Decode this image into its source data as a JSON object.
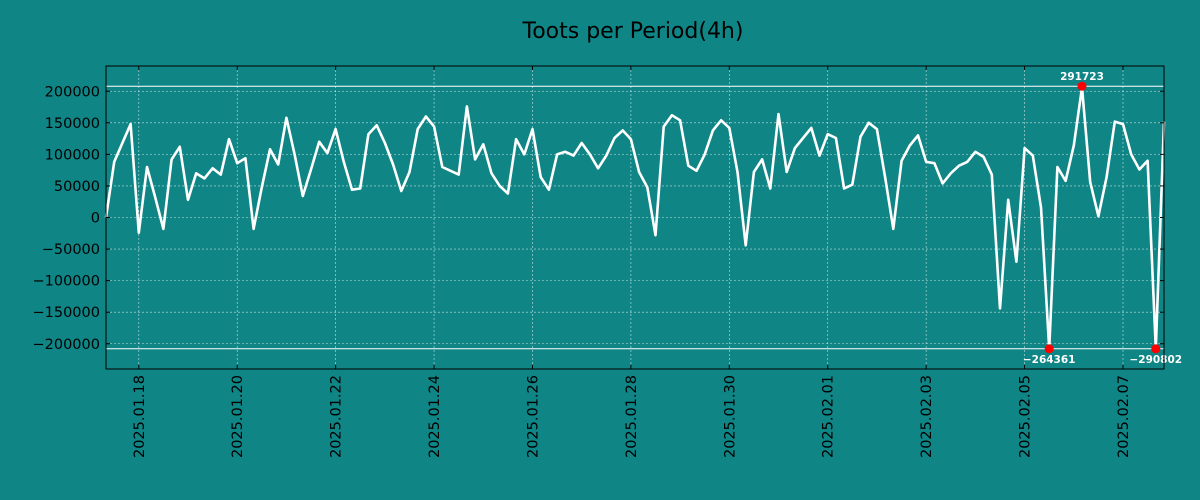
{
  "colors": {
    "background": "#108586",
    "line": "#ffffff",
    "marker": "#ff0000",
    "grid": "#ffffff",
    "text": "#000000"
  },
  "chart_data": {
    "type": "line",
    "title": "Toots per Period(4h)",
    "xlabel": "",
    "ylabel": "",
    "x_start": "2025-01-17 08:00",
    "period_hours": 4,
    "grid": true,
    "legend": "none",
    "ylim": [
      -240000,
      240000
    ],
    "xlim": [
      "2025-01-17 08:00",
      "2025-02-07 20:00"
    ],
    "yticks": [
      200000,
      150000,
      100000,
      50000,
      0,
      -50000,
      -100000,
      -150000,
      -200000
    ],
    "ytick_labels": [
      "200000",
      "150000",
      "100000",
      "50000",
      "0",
      "−50000",
      "−100000",
      "−150000",
      "−200000"
    ],
    "xticks": [
      "2025-01-18",
      "2025-01-20",
      "2025-01-22",
      "2025-01-24",
      "2025-01-26",
      "2025-01-28",
      "2025-01-30",
      "2025-02-01",
      "2025-02-03",
      "2025-02-05",
      "2025-02-07"
    ],
    "xtick_labels": [
      "2025.01.18",
      "2025.01.20",
      "2025.01.22",
      "2025.01.24",
      "2025.01.26",
      "2025.01.28",
      "2025.01.30",
      "2025.02.01",
      "2025.02.03",
      "2025.02.05",
      "2025.02.07"
    ],
    "series": [
      {
        "values": [
          0,
          88000,
          118000,
          148000,
          -24000,
          80000,
          32000,
          -18000,
          92000,
          112000,
          28000,
          70000,
          62000,
          78000,
          68000,
          124000,
          86000,
          94000,
          -18000,
          48000,
          108000,
          84000,
          158000,
          100000,
          34000,
          76000,
          120000,
          102000,
          140000,
          88000,
          44000,
          46000,
          132000,
          146000,
          118000,
          84000,
          42000,
          72000,
          140000,
          160000,
          144000,
          80000,
          74000,
          68000,
          176000,
          92000,
          116000,
          70000,
          50000,
          38000,
          124000,
          100000,
          140000,
          64000,
          44000,
          100000,
          104000,
          98000,
          118000,
          100000,
          78000,
          98000,
          126000,
          138000,
          124000,
          72000,
          48000,
          -28000,
          144000,
          162000,
          154000,
          82000,
          74000,
          100000,
          138000,
          154000,
          142000,
          72000,
          -44000,
          72000,
          92000,
          46000,
          164000,
          72000,
          110000,
          126000,
          142000,
          98000,
          132000,
          126000,
          46000,
          52000,
          128000,
          150000,
          140000,
          64000,
          -18000,
          90000,
          114000,
          130000,
          88000,
          86000,
          54000,
          70000,
          82000,
          88000,
          104000,
          96000,
          68000,
          -144000,
          28000,
          -70000,
          110000,
          98000,
          16000,
          -208000,
          80000,
          58000,
          114000,
          206000,
          56000,
          2000,
          64000,
          152000,
          148000,
          100000,
          76000,
          90000,
          -208000,
          152000
        ]
      }
    ],
    "reference_lines": [
      208000,
      -208000
    ],
    "annotations": [
      {
        "label": "291723",
        "index": 119,
        "value": 208000,
        "position": "above"
      },
      {
        "label": "−264361",
        "index": 115,
        "value": -208000,
        "position": "below"
      },
      {
        "label": "−290802",
        "index": 128,
        "value": -208000,
        "position": "below"
      }
    ]
  }
}
